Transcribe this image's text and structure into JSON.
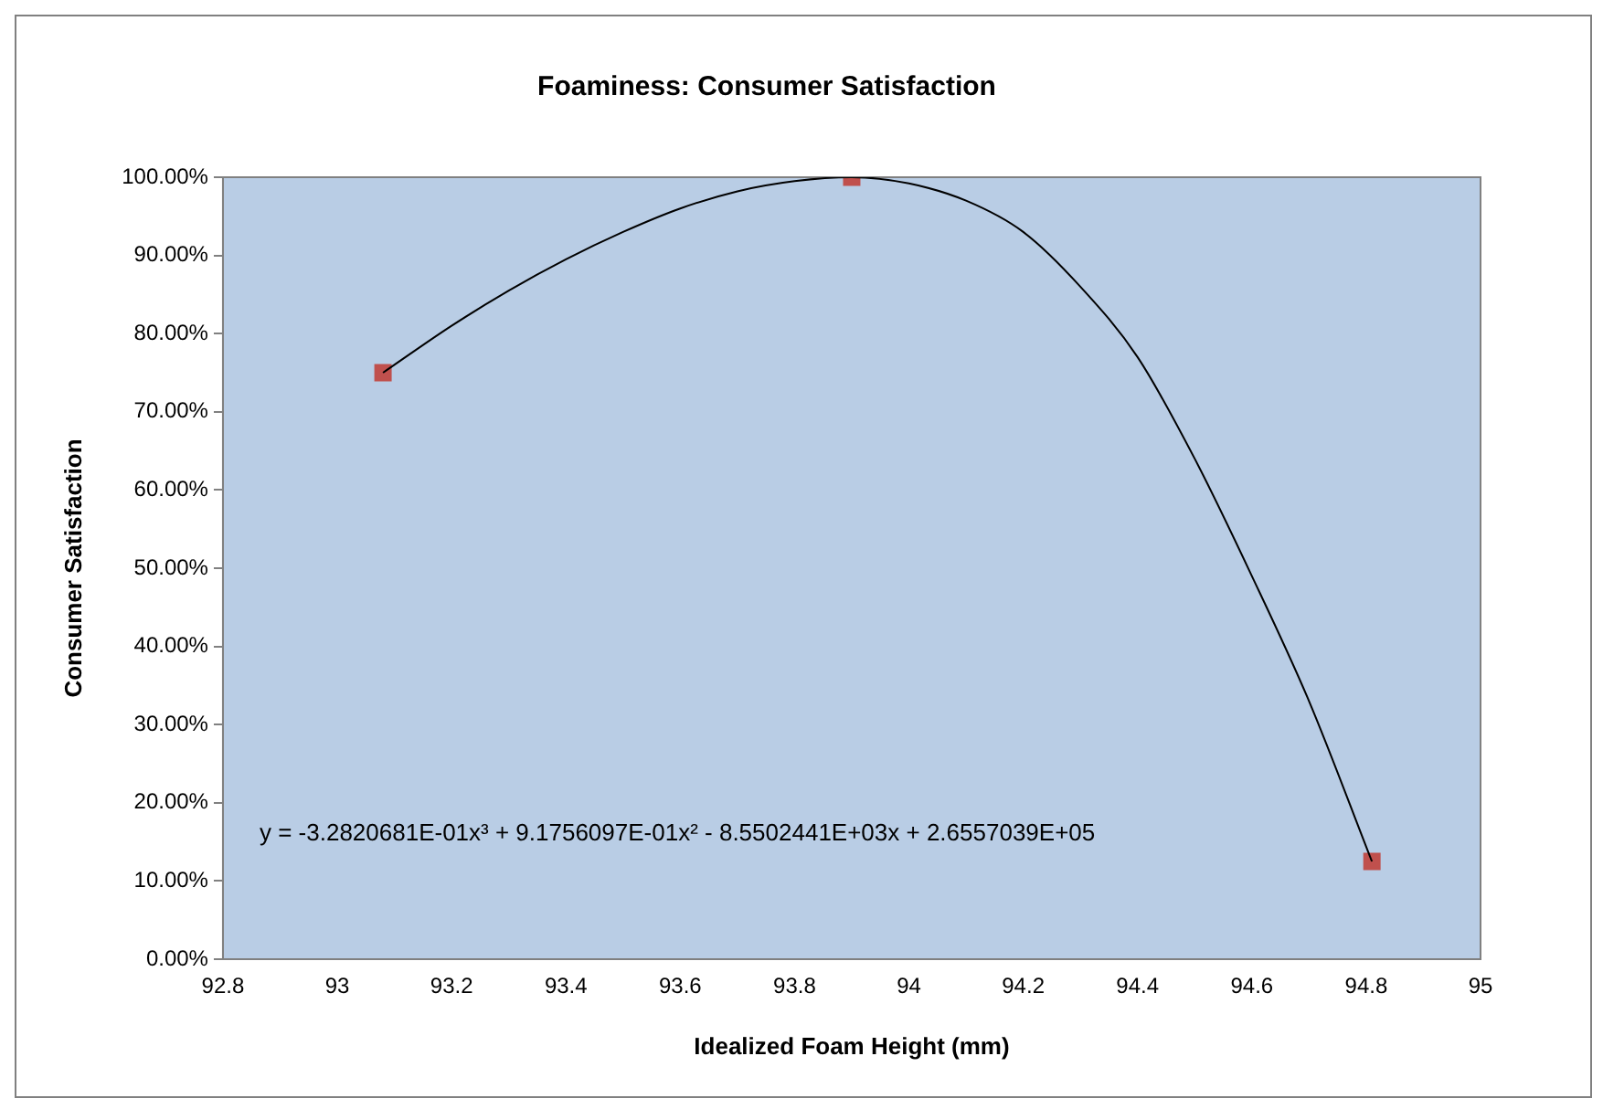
{
  "chart_data": {
    "type": "scatter",
    "title": "Foaminess: Consumer Satisfaction",
    "xlabel": "Idealized Foam Height (mm)",
    "ylabel": "Consumer Satisfaction",
    "series": [
      {
        "color": "#c0504d",
        "marker": "square",
        "x": [
          93.08,
          93.9,
          94.81
        ],
        "values": [
          75,
          100,
          12.5
        ]
      },
      {
        "type": "line",
        "color": "#000000",
        "marker": "none",
        "x": [
          93.08,
          93.2,
          93.3,
          93.4,
          93.5,
          93.6,
          93.7,
          93.8,
          93.9,
          94.0,
          94.1,
          94.2,
          94.3,
          94.4,
          94.5,
          94.6,
          94.7,
          94.81
        ],
        "values": [
          75,
          81,
          85.5,
          89.5,
          93,
          96,
          98.2,
          99.5,
          100,
          99.2,
          97,
          93,
          86,
          77,
          64,
          49,
          33,
          12.5
        ]
      }
    ],
    "xlim": [
      92.8,
      95
    ],
    "xticks": [
      92.8,
      93,
      93.2,
      93.4,
      93.6,
      93.8,
      94,
      94.2,
      94.4,
      94.6,
      94.8,
      95
    ],
    "ylim": [
      0,
      100
    ],
    "yticks": [
      {
        "value": 0,
        "label": "0.00%"
      },
      {
        "value": 10,
        "label": "10.00%"
      },
      {
        "value": 20,
        "label": "20.00%"
      },
      {
        "value": 30,
        "label": "30.00%"
      },
      {
        "value": 40,
        "label": "40.00%"
      },
      {
        "value": 50,
        "label": "50.00%"
      },
      {
        "value": 60,
        "label": "60.00%"
      },
      {
        "value": 70,
        "label": "70.00%"
      },
      {
        "value": 80,
        "label": "80.00%"
      },
      {
        "value": 90,
        "label": "90.00%"
      },
      {
        "value": 100,
        "label": "100.00%"
      }
    ],
    "annotations": [
      "y = -3.2820681E-01x³ + 9.1756097E-01x² - 8.5502441E+03x + 2.6557039E+05"
    ],
    "grid": false,
    "legend": false
  }
}
